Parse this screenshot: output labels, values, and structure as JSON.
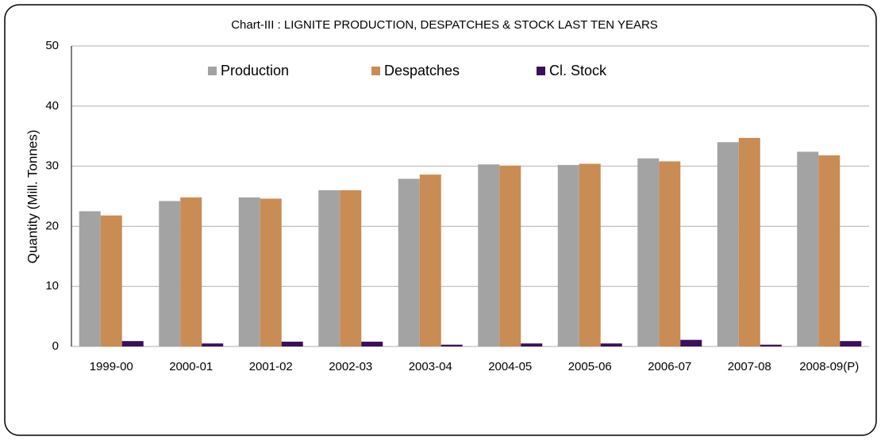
{
  "chart_data": {
    "type": "bar",
    "title": "Chart-III : LIGNITE PRODUCTION, DESPATCHES & STOCK  LAST TEN YEARS",
    "y_label": "Quantity (Mill. Tonnes)",
    "categories": [
      "1999-00",
      "2000-01",
      "2001-02",
      "2002-03",
      "2003-04",
      "2004-05",
      "2005-06",
      "2006-07",
      "2007-08",
      "2008-09(P)"
    ],
    "series": [
      {
        "name": "Production",
        "color": "#a3a3a3",
        "values": [
          22.5,
          24.2,
          24.8,
          26.0,
          27.9,
          30.3,
          30.2,
          31.3,
          34.0,
          32.4
        ]
      },
      {
        "name": "Despatches",
        "color": "#c98c55",
        "values": [
          21.8,
          24.8,
          24.6,
          26.0,
          28.6,
          30.1,
          30.4,
          30.8,
          34.7,
          31.8
        ]
      },
      {
        "name": "Cl. Stock",
        "color": "#3c0f5c",
        "values": [
          0.9,
          0.5,
          0.8,
          0.8,
          0.3,
          0.5,
          0.5,
          1.1,
          0.3,
          0.9
        ]
      }
    ],
    "ylim": [
      0,
      50
    ],
    "yticks": [
      0,
      10,
      20,
      30,
      40,
      50
    ],
    "grid": true,
    "legend": "top"
  }
}
